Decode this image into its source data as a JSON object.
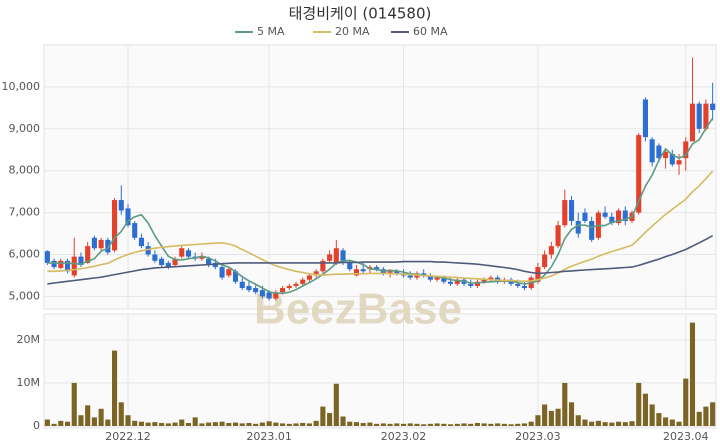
{
  "chart_data": {
    "type": "candlestick",
    "title": "태경비케이 (014580)",
    "watermark": "BeezBase",
    "up_color": "#e3412b",
    "down_color": "#2d6ed3",
    "categories": [
      null,
      null,
      null,
      null,
      null,
      null,
      null,
      null,
      null,
      null,
      null,
      null,
      "2022.12",
      null,
      null,
      null,
      null,
      null,
      null,
      null,
      null,
      null,
      null,
      null,
      null,
      null,
      null,
      null,
      null,
      null,
      null,
      null,
      null,
      "2023.01",
      null,
      null,
      null,
      null,
      null,
      null,
      null,
      null,
      null,
      null,
      null,
      null,
      null,
      null,
      null,
      null,
      null,
      null,
      null,
      "2023.02",
      null,
      null,
      null,
      null,
      null,
      null,
      null,
      null,
      null,
      null,
      null,
      null,
      null,
      null,
      null,
      null,
      null,
      null,
      null,
      "2023.03",
      null,
      null,
      null,
      null,
      null,
      null,
      null,
      null,
      null,
      null,
      null,
      null,
      null,
      null,
      null,
      null,
      null,
      null,
      null,
      null,
      null,
      "2023.04",
      null,
      null,
      null,
      null
    ],
    "open": [
      6080,
      5850,
      5680,
      5850,
      5500,
      5950,
      5800,
      6400,
      6150,
      6350,
      6100,
      7300,
      7100,
      6750,
      6400,
      6200,
      6000,
      5900,
      5800,
      5750,
      5950,
      6100,
      5950,
      5900,
      5900,
      5800,
      5700,
      5500,
      5600,
      5350,
      5250,
      5200,
      5150,
      5100,
      4950,
      5100,
      5200,
      5250,
      5300,
      5400,
      5500,
      5600,
      5850,
      5800,
      6100,
      5800,
      5500,
      5650,
      5650,
      5700,
      5650,
      5550,
      5600,
      5550,
      5500,
      5450,
      5550,
      5500,
      5400,
      5450,
      5350,
      5300,
      5400,
      5300,
      5250,
      5350,
      5400,
      5450,
      5350,
      5400,
      5300,
      5250,
      5200,
      5350,
      5700,
      6000,
      6200,
      6700,
      7300,
      6800,
      7000,
      6800,
      6400,
      7000,
      6900,
      6750,
      7050,
      6800,
      7000,
      9700,
      8750,
      8600,
      8300,
      8400,
      8150,
      8300,
      8700,
      9600,
      9000,
      9600
    ],
    "high": [
      6100,
      5900,
      5900,
      5900,
      6400,
      6050,
      6300,
      6450,
      6400,
      6400,
      7350,
      7650,
      7200,
      6800,
      6500,
      6300,
      6100,
      5950,
      5850,
      5950,
      6200,
      6150,
      6050,
      6050,
      5950,
      5900,
      5800,
      5700,
      5650,
      5450,
      5350,
      5300,
      5250,
      5150,
      5150,
      5250,
      5300,
      5350,
      5450,
      5550,
      5650,
      5900,
      6100,
      6350,
      6150,
      5850,
      5750,
      5800,
      5750,
      5750,
      5700,
      5650,
      5650,
      5650,
      5600,
      5600,
      5650,
      5550,
      5500,
      5500,
      5450,
      5450,
      5450,
      5400,
      5400,
      5450,
      5500,
      5500,
      5450,
      5450,
      5400,
      5350,
      5500,
      5800,
      6100,
      6300,
      6800,
      7550,
      7400,
      7000,
      7100,
      6900,
      7050,
      7150,
      7000,
      7100,
      7150,
      7050,
      8900,
      9750,
      8800,
      8650,
      8500,
      8500,
      8400,
      8800,
      10700,
      9650,
      9700,
      10100
    ],
    "low": [
      5750,
      5650,
      5650,
      5550,
      5450,
      5700,
      5780,
      6100,
      6100,
      6000,
      6050,
      6950,
      6650,
      6350,
      6150,
      5950,
      5800,
      5700,
      5650,
      5700,
      5900,
      5900,
      5850,
      5850,
      5700,
      5650,
      5400,
      5450,
      5300,
      5150,
      5100,
      5050,
      4950,
      4900,
      4900,
      5050,
      5150,
      5200,
      5250,
      5350,
      5450,
      5550,
      5800,
      5750,
      5750,
      5600,
      5480,
      5550,
      5550,
      5600,
      5500,
      5450,
      5500,
      5450,
      5400,
      5400,
      5450,
      5350,
      5350,
      5300,
      5250,
      5250,
      5250,
      5200,
      5200,
      5300,
      5350,
      5300,
      5300,
      5250,
      5200,
      5150,
      5150,
      5300,
      5650,
      5900,
      6150,
      6650,
      6700,
      6400,
      6750,
      6300,
      6350,
      6850,
      6700,
      6700,
      6700,
      6750,
      6950,
      8700,
      8100,
      8200,
      8050,
      8100,
      7900,
      8000,
      8700,
      8900,
      8950,
      9200
    ],
    "close": [
      5800,
      5700,
      5850,
      5600,
      5950,
      5750,
      6200,
      6150,
      6350,
      6050,
      7300,
      7050,
      6700,
      6400,
      6200,
      6000,
      5850,
      5750,
      5700,
      5900,
      6150,
      5950,
      5900,
      5950,
      5750,
      5700,
      5450,
      5650,
      5350,
      5200,
      5150,
      5100,
      5000,
      4950,
      5100,
      5200,
      5250,
      5300,
      5400,
      5500,
      5600,
      5850,
      6000,
      6150,
      5800,
      5650,
      5650,
      5600,
      5700,
      5650,
      5550,
      5600,
      5550,
      5500,
      5450,
      5550,
      5500,
      5400,
      5450,
      5350,
      5300,
      5400,
      5300,
      5250,
      5350,
      5400,
      5450,
      5350,
      5400,
      5300,
      5250,
      5200,
      5450,
      5700,
      6000,
      6200,
      6700,
      7300,
      6800,
      6500,
      6800,
      6350,
      7000,
      6900,
      6750,
      7050,
      6800,
      7000,
      8850,
      8800,
      8200,
      8300,
      8450,
      8150,
      8250,
      8700,
      9600,
      9000,
      9600,
      9450
    ],
    "ylim": [
      4700,
      11000
    ],
    "yticks": [
      {
        "value": 5000,
        "label": "5,000"
      },
      {
        "value": 6000,
        "label": "6,000"
      },
      {
        "value": 7000,
        "label": "7,000"
      },
      {
        "value": 8000,
        "label": "8,000"
      },
      {
        "value": 9000,
        "label": "9,000"
      },
      {
        "value": 10000,
        "label": "10,000"
      }
    ],
    "series": [
      {
        "name": "5 MA",
        "color": "#5c9c82",
        "values": [
          5800,
          5800,
          5800,
          5800,
          5780,
          5770,
          5840,
          5900,
          6080,
          6150,
          6400,
          6550,
          6800,
          6900,
          6950,
          6750,
          6450,
          6200,
          5960,
          5880,
          5870,
          5900,
          5920,
          5960,
          5920,
          5850,
          5750,
          5700,
          5590,
          5470,
          5370,
          5290,
          5200,
          5110,
          5080,
          5070,
          5100,
          5160,
          5250,
          5330,
          5420,
          5530,
          5650,
          5800,
          5850,
          5860,
          5820,
          5760,
          5660,
          5640,
          5610,
          5620,
          5610,
          5580,
          5540,
          5530,
          5500,
          5480,
          5470,
          5440,
          5400,
          5380,
          5360,
          5320,
          5320,
          5340,
          5350,
          5360,
          5370,
          5360,
          5330,
          5300,
          5320,
          5370,
          5510,
          5710,
          6000,
          6380,
          6600,
          6700,
          6700,
          6650,
          6690,
          6690,
          6770,
          6800,
          6840,
          6900,
          7270,
          7630,
          7900,
          8250,
          8520,
          8380,
          8300,
          8370,
          8640,
          8740,
          9010,
          9250
        ]
      },
      {
        "name": "20 MA",
        "color": "#d6bb62",
        "values": [
          5600,
          5600,
          5610,
          5620,
          5640,
          5660,
          5690,
          5720,
          5760,
          5790,
          5870,
          5940,
          6000,
          6050,
          6090,
          6120,
          6150,
          6170,
          6190,
          6200,
          6220,
          6230,
          6240,
          6250,
          6260,
          6270,
          6280,
          6250,
          6200,
          6120,
          6040,
          5960,
          5880,
          5800,
          5730,
          5680,
          5640,
          5600,
          5570,
          5540,
          5520,
          5510,
          5520,
          5530,
          5530,
          5540,
          5540,
          5540,
          5550,
          5550,
          5550,
          5550,
          5540,
          5530,
          5520,
          5510,
          5500,
          5490,
          5480,
          5470,
          5460,
          5450,
          5440,
          5430,
          5420,
          5410,
          5400,
          5390,
          5380,
          5380,
          5370,
          5360,
          5370,
          5400,
          5440,
          5490,
          5560,
          5650,
          5720,
          5780,
          5840,
          5890,
          5960,
          6020,
          6070,
          6120,
          6170,
          6220,
          6370,
          6530,
          6680,
          6820,
          6960,
          7080,
          7200,
          7320,
          7500,
          7640,
          7810,
          7990
        ]
      },
      {
        "name": "60 MA",
        "color": "#4f5b7c",
        "values": [
          5300,
          5320,
          5340,
          5360,
          5380,
          5400,
          5420,
          5440,
          5460,
          5490,
          5520,
          5550,
          5580,
          5610,
          5640,
          5660,
          5680,
          5690,
          5700,
          5710,
          5720,
          5730,
          5740,
          5750,
          5760,
          5770,
          5780,
          5790,
          5800,
          5800,
          5800,
          5800,
          5800,
          5800,
          5800,
          5800,
          5800,
          5800,
          5800,
          5800,
          5800,
          5800,
          5800,
          5800,
          5810,
          5810,
          5810,
          5820,
          5820,
          5820,
          5820,
          5820,
          5820,
          5830,
          5830,
          5830,
          5830,
          5830,
          5820,
          5820,
          5810,
          5800,
          5790,
          5780,
          5770,
          5750,
          5730,
          5710,
          5690,
          5670,
          5640,
          5600,
          5570,
          5550,
          5560,
          5570,
          5580,
          5600,
          5610,
          5620,
          5630,
          5640,
          5650,
          5660,
          5670,
          5680,
          5690,
          5700,
          5740,
          5790,
          5840,
          5890,
          5950,
          6000,
          6060,
          6120,
          6200,
          6280,
          6360,
          6450
        ]
      }
    ],
    "volume": {
      "color": "#7b6424",
      "ylim": [
        0,
        26000000
      ],
      "yticks": [
        0,
        {
          "value": 10000000,
          "label": "10M"
        },
        {
          "value": 20000000,
          "label": "20M"
        }
      ],
      "values": [
        1500000,
        500000,
        1200000,
        1000000,
        10000000,
        2500000,
        4800000,
        2000000,
        4000000,
        1500000,
        17500000,
        5500000,
        2500000,
        1200000,
        1000000,
        800000,
        900000,
        700000,
        600000,
        800000,
        1500000,
        700000,
        2000000,
        600000,
        800000,
        900000,
        1000000,
        700000,
        800000,
        600000,
        700000,
        500000,
        800000,
        1100000,
        800000,
        600000,
        500000,
        600000,
        700000,
        600000,
        1200000,
        4500000,
        3000000,
        9800000,
        2200000,
        1000000,
        900000,
        700000,
        800000,
        500000,
        600000,
        500000,
        600000,
        500000,
        600000,
        500000,
        400000,
        500000,
        600000,
        500000,
        400000,
        500000,
        600000,
        500000,
        700000,
        600000,
        500000,
        600000,
        500000,
        400000,
        500000,
        600000,
        1000000,
        2500000,
        5000000,
        3500000,
        4000000,
        10000000,
        5500000,
        2500000,
        1500000,
        1000000,
        1200000,
        900000,
        800000,
        1000000,
        900000,
        1100000,
        10000000,
        7500000,
        5000000,
        3000000,
        2000000,
        1500000,
        1000000,
        11000000,
        24000000,
        3300000,
        4500000,
        5500000
      ]
    },
    "grid": true
  }
}
